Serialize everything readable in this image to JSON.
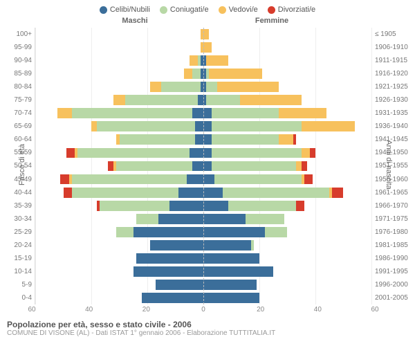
{
  "legend": [
    {
      "label": "Celibi/Nubili",
      "color": "#3b6e9a"
    },
    {
      "label": "Coniugati/e",
      "color": "#b8d8a6"
    },
    {
      "label": "Vedovi/e",
      "color": "#f7c15d"
    },
    {
      "label": "Divorziati/e",
      "color": "#d73c2c"
    }
  ],
  "header_left": "Maschi",
  "header_right": "Femmine",
  "ylabel_left": "Fasce di età",
  "ylabel_right": "Anni di nascita",
  "title": "Popolazione per età, sesso e stato civile - 2006",
  "subtitle": "COMUNE DI VISONE (AL) - Dati ISTAT 1° gennaio 2006 - Elaborazione TUTTITALIA.IT",
  "xmax": 60,
  "xticks": [
    60,
    40,
    20,
    0,
    20,
    40,
    60
  ],
  "age_labels": [
    "100+",
    "95-99",
    "90-94",
    "85-89",
    "80-84",
    "75-79",
    "70-74",
    "65-69",
    "60-64",
    "55-59",
    "50-54",
    "45-49",
    "40-44",
    "35-39",
    "30-34",
    "25-29",
    "20-24",
    "15-19",
    "10-14",
    "5-9",
    "0-4"
  ],
  "birth_labels": [
    "≤ 1905",
    "1906-1910",
    "1911-1915",
    "1916-1920",
    "1921-1925",
    "1926-1930",
    "1931-1935",
    "1936-1940",
    "1941-1945",
    "1946-1950",
    "1951-1955",
    "1956-1960",
    "1961-1965",
    "1966-1970",
    "1971-1975",
    "1976-1980",
    "1981-1985",
    "1986-1990",
    "1991-1995",
    "1996-2000",
    "2001-2005"
  ],
  "rows": [
    {
      "m": [
        0,
        0,
        1,
        0
      ],
      "f": [
        0,
        0,
        2,
        0
      ]
    },
    {
      "m": [
        0,
        0,
        1,
        0
      ],
      "f": [
        0,
        0,
        3,
        0
      ]
    },
    {
      "m": [
        1,
        1,
        3,
        0
      ],
      "f": [
        1,
        0,
        8,
        0
      ]
    },
    {
      "m": [
        1,
        3,
        3,
        0
      ],
      "f": [
        1,
        1,
        19,
        0
      ]
    },
    {
      "m": [
        1,
        14,
        4,
        0
      ],
      "f": [
        1,
        4,
        22,
        0
      ]
    },
    {
      "m": [
        2,
        26,
        4,
        0
      ],
      "f": [
        1,
        12,
        22,
        0
      ]
    },
    {
      "m": [
        4,
        43,
        5,
        0
      ],
      "f": [
        3,
        24,
        17,
        0
      ]
    },
    {
      "m": [
        3,
        35,
        2,
        0
      ],
      "f": [
        3,
        32,
        19,
        0
      ]
    },
    {
      "m": [
        3,
        27,
        1,
        0
      ],
      "f": [
        3,
        24,
        5,
        1
      ]
    },
    {
      "m": [
        5,
        40,
        1,
        3
      ],
      "f": [
        3,
        32,
        3,
        2
      ]
    },
    {
      "m": [
        4,
        27,
        1,
        2
      ],
      "f": [
        3,
        30,
        2,
        2
      ]
    },
    {
      "m": [
        6,
        41,
        1,
        3
      ],
      "f": [
        4,
        31,
        1,
        3
      ]
    },
    {
      "m": [
        9,
        38,
        0,
        3
      ],
      "f": [
        7,
        38,
        1,
        4
      ]
    },
    {
      "m": [
        12,
        25,
        0,
        1
      ],
      "f": [
        9,
        24,
        0,
        3
      ]
    },
    {
      "m": [
        16,
        8,
        0,
        0
      ],
      "f": [
        15,
        14,
        0,
        0
      ]
    },
    {
      "m": [
        25,
        6,
        0,
        0
      ],
      "f": [
        22,
        8,
        0,
        0
      ]
    },
    {
      "m": [
        19,
        0,
        0,
        0
      ],
      "f": [
        17,
        1,
        0,
        0
      ]
    },
    {
      "m": [
        24,
        0,
        0,
        0
      ],
      "f": [
        20,
        0,
        0,
        0
      ]
    },
    {
      "m": [
        25,
        0,
        0,
        0
      ],
      "f": [
        25,
        0,
        0,
        0
      ]
    },
    {
      "m": [
        17,
        0,
        0,
        0
      ],
      "f": [
        19,
        0,
        0,
        0
      ]
    },
    {
      "m": [
        22,
        0,
        0,
        0
      ],
      "f": [
        20,
        0,
        0,
        0
      ]
    }
  ]
}
